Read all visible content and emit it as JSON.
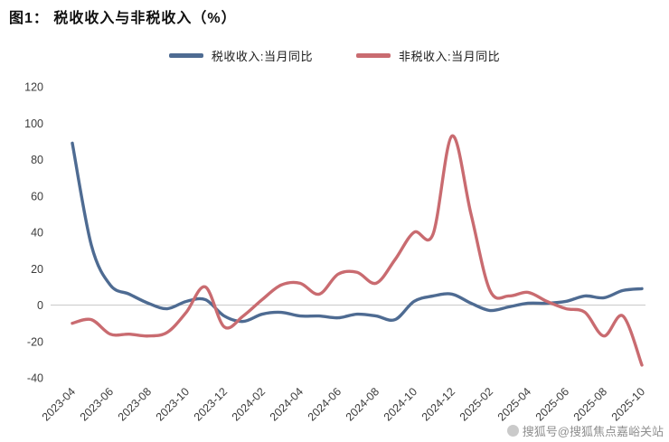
{
  "watermark": "搜狐号@搜狐焦点嘉峪关站",
  "chart_data": {
    "type": "line",
    "title": "图1： 税收收入与非税收入（%）",
    "x": [
      "2023-04",
      "2023-05",
      "2023-06",
      "2023-07",
      "2023-08",
      "2023-09",
      "2023-10",
      "2023-11",
      "2023-12",
      "2024-01",
      "2024-02",
      "2024-03",
      "2024-04",
      "2024-05",
      "2024-06",
      "2024-07",
      "2024-08",
      "2024-09",
      "2024-10",
      "2024-11",
      "2024-12",
      "2025-01",
      "2025-02",
      "2025-03",
      "2025-04",
      "2025-05",
      "2025-06",
      "2025-07",
      "2025-08",
      "2025-09",
      "2025-10"
    ],
    "series": [
      {
        "name": "税收收入:当月同比",
        "color": "#4e6b92",
        "values": [
          89,
          33,
          11,
          6,
          1,
          -2,
          2,
          3,
          -6,
          -9,
          -5,
          -4,
          -6,
          -6,
          -7,
          -5,
          -6,
          -8,
          2,
          5,
          6,
          1,
          -3,
          -1,
          1,
          1,
          2,
          5,
          4,
          8,
          9
        ]
      },
      {
        "name": "非税收入:当月同比",
        "color": "#c96b70",
        "values": [
          -10,
          -8,
          -16,
          -16,
          -17,
          -15,
          -4,
          10,
          -12,
          -6,
          3,
          11,
          12,
          6,
          17,
          18,
          12,
          25,
          40,
          39,
          93,
          50,
          8,
          5,
          7,
          2,
          -2,
          -4,
          -17,
          -6,
          -33
        ]
      }
    ],
    "ylim": [
      -40,
      120
    ],
    "yticks": [
      -40,
      -20,
      0,
      20,
      40,
      60,
      80,
      100,
      120
    ],
    "xtick_every": 2,
    "xlabel": "",
    "ylabel": "",
    "grid": false,
    "zero_line_color": "#c9c9c9",
    "legend_position": "top"
  }
}
